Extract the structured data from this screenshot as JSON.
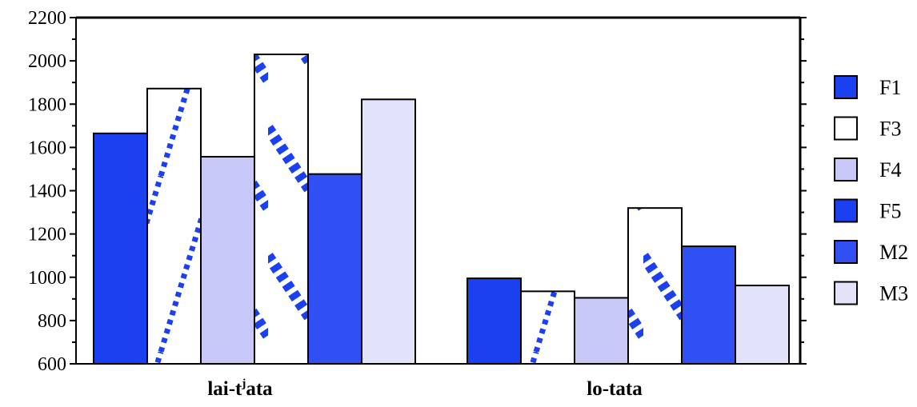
{
  "chart_data": {
    "type": "bar",
    "title": "",
    "xlabel": "",
    "ylabel": "",
    "categories": [
      "lai-t",
      "lo-tata"
    ],
    "category_label_parts": [
      {
        "base": "lai-t",
        "sup": "j",
        "tail": "ata"
      },
      {
        "base": "lo-tata",
        "sup": "",
        "tail": ""
      }
    ],
    "ylim": [
      600,
      2200
    ],
    "yticks": [
      "600",
      "800",
      "1000",
      "1200",
      "1400",
      "1600",
      "1800",
      "2000",
      "2200"
    ],
    "grid": false,
    "legend_position": "right",
    "series": [
      {
        "name": "F1",
        "values": [
          1665,
          995
        ],
        "color": "#1a40f0",
        "pattern": "solid"
      },
      {
        "name": "F3",
        "values": [
          1872,
          935
        ],
        "color": "#1a40f0",
        "pattern": "sparse-diagonal"
      },
      {
        "name": "F4",
        "values": [
          1557,
          905
        ],
        "color": "#c8c8f8",
        "pattern": "solid"
      },
      {
        "name": "F5",
        "values": [
          2030,
          1320
        ],
        "color": "#1a40f0",
        "pattern": "dense-diagonal"
      },
      {
        "name": "M2",
        "values": [
          1477,
          1143
        ],
        "color": "#3050f4",
        "pattern": "solid"
      },
      {
        "name": "M3",
        "values": [
          1822,
          962
        ],
        "color": "#e2e2fa",
        "pattern": "solid"
      }
    ]
  }
}
